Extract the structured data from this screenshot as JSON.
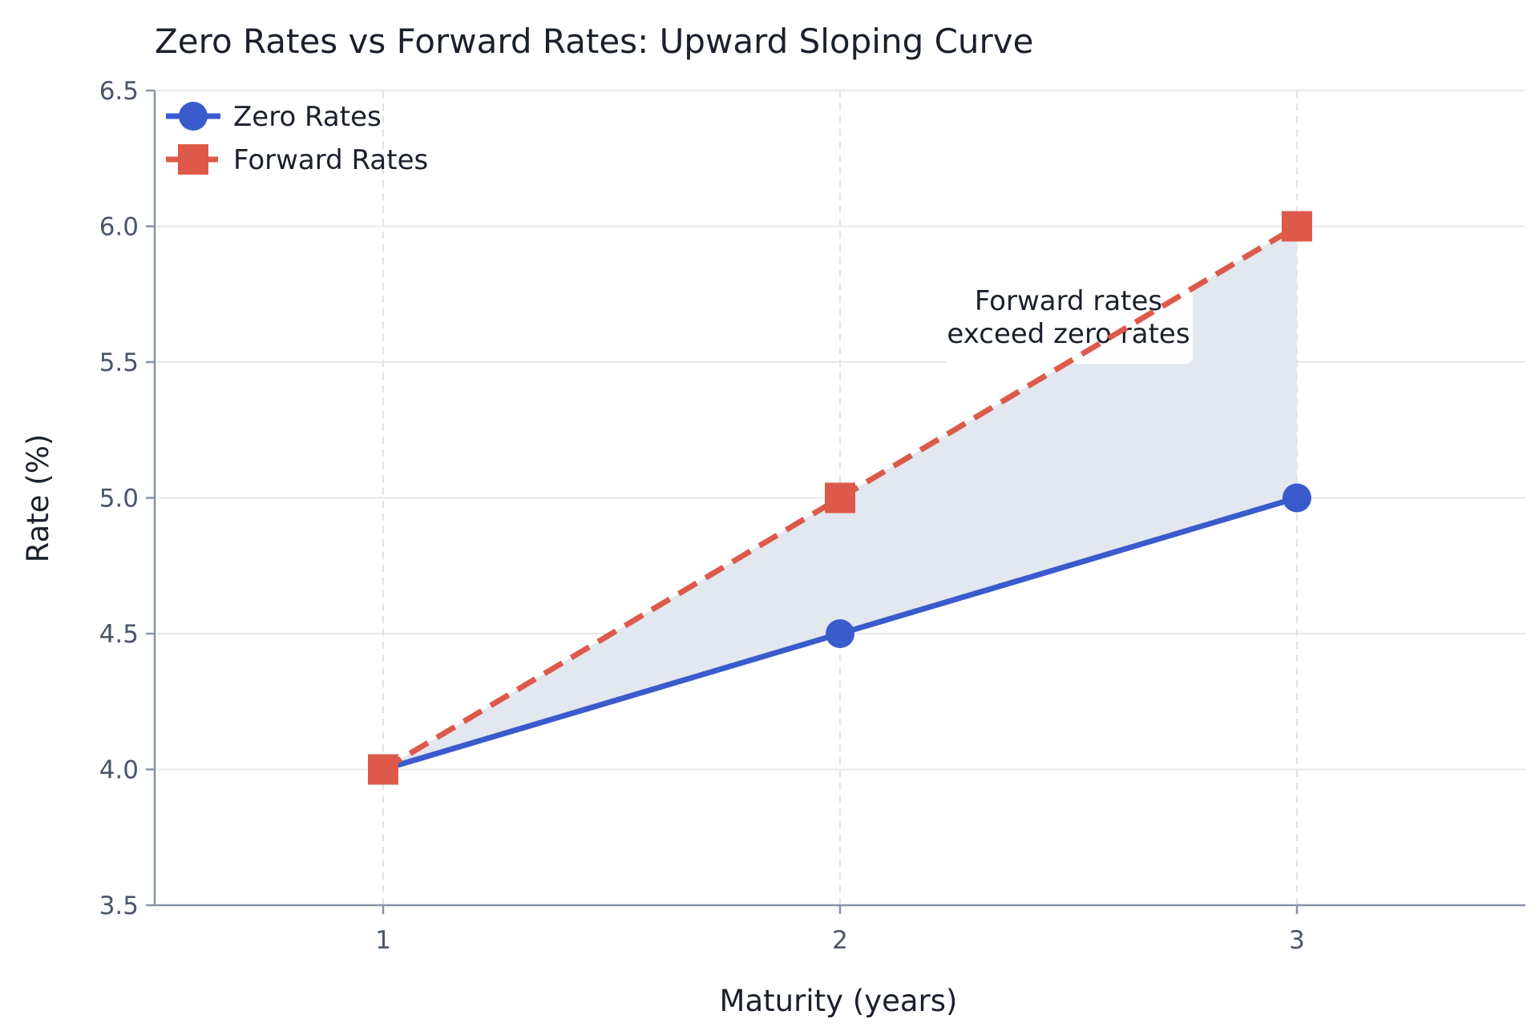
{
  "chart_data": {
    "type": "line",
    "title": "Zero Rates vs Forward Rates: Upward Sloping Curve",
    "xlabel": "Maturity (years)",
    "ylabel": "Rate (%)",
    "x": [
      1,
      2,
      3
    ],
    "xlim": [
      0.5,
      3.5
    ],
    "ylim": [
      3.5,
      6.5
    ],
    "xticks": [
      "1",
      "2",
      "3"
    ],
    "yticks": [
      "3.5",
      "4.0",
      "4.5",
      "5.0",
      "5.5",
      "6.0",
      "6.5"
    ],
    "grid": true,
    "legend_position": "top-left",
    "series": [
      {
        "name": "Zero Rates",
        "values": [
          4.0,
          4.5,
          5.0
        ],
        "color": "#3a5bcc",
        "style": "solid",
        "marker": "circle"
      },
      {
        "name": "Forward Rates",
        "values": [
          4.0,
          5.0,
          6.0
        ],
        "color": "#dd5a4b",
        "style": "dashed",
        "marker": "square"
      }
    ],
    "fill_between": {
      "color": "#e2e6ee"
    },
    "annotation": {
      "lines": [
        "Forward rates",
        "exceed zero rates"
      ],
      "x": 2.5,
      "y": 5.65
    }
  }
}
